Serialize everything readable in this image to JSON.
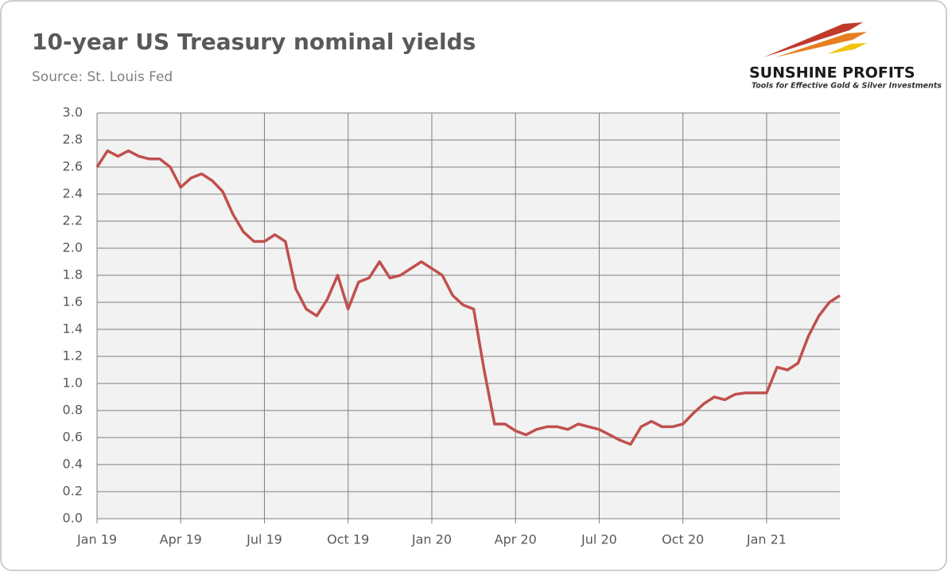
{
  "chart_data": {
    "type": "line",
    "title": "10-year US Treasury nominal yields",
    "subtitle": "Source: St. Louis Fed",
    "logo_text": "SUNSHINE PROFITS",
    "logo_tagline": "Tools for Effective Gold & Silver Investments",
    "categories": [
      "Jan 19",
      null,
      null,
      null,
      null,
      null,
      null,
      null,
      "Apr 19",
      null,
      null,
      null,
      null,
      null,
      null,
      null,
      "Jul 19",
      null,
      null,
      null,
      null,
      null,
      null,
      null,
      "Oct 19",
      null,
      null,
      null,
      null,
      null,
      null,
      null,
      "Jan 20",
      null,
      null,
      null,
      null,
      null,
      null,
      null,
      "Apr 20",
      null,
      null,
      null,
      null,
      null,
      null,
      null,
      "Jul 20",
      null,
      null,
      null,
      null,
      null,
      null,
      null,
      "Oct 20",
      null,
      null,
      null,
      null,
      null,
      null,
      null,
      "Jan 21",
      null,
      null,
      null,
      null,
      null,
      null,
      null
    ],
    "values": [
      2.6,
      2.72,
      2.68,
      2.72,
      2.68,
      2.66,
      2.66,
      2.6,
      2.45,
      2.52,
      2.55,
      2.5,
      2.42,
      2.25,
      2.12,
      2.05,
      2.05,
      2.1,
      2.05,
      1.7,
      1.55,
      1.5,
      1.62,
      1.8,
      1.55,
      1.75,
      1.78,
      1.9,
      1.78,
      1.8,
      1.85,
      1.9,
      1.85,
      1.8,
      1.65,
      1.58,
      1.55,
      1.1,
      0.7,
      0.7,
      0.65,
      0.62,
      0.66,
      0.68,
      0.68,
      0.66,
      0.7,
      0.68,
      0.66,
      0.62,
      0.58,
      0.55,
      0.68,
      0.72,
      0.68,
      0.68,
      0.7,
      0.78,
      0.85,
      0.9,
      0.88,
      0.92,
      0.93,
      0.93,
      0.93,
      1.12,
      1.1,
      1.15,
      1.35,
      1.5,
      1.6,
      1.65
    ],
    "color": "#c0504d",
    "ylim": [
      0,
      3
    ],
    "yticks": [
      {
        "value": 0,
        "label": "0.0"
      },
      0.2,
      0.4,
      0.6,
      0.8,
      {
        "value": 1,
        "label": "1.0"
      },
      1.2,
      1.4,
      1.6,
      1.8,
      {
        "value": 2,
        "label": "2.0"
      },
      2.2,
      2.4,
      2.6,
      2.8,
      {
        "value": 3,
        "label": "3.0"
      }
    ],
    "grid": true
  }
}
